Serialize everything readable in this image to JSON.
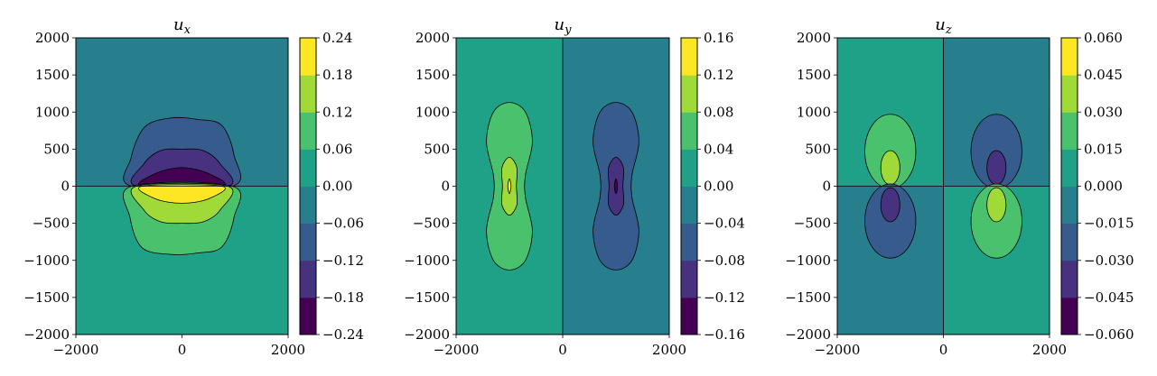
{
  "chart_data": [
    {
      "type": "contour",
      "title": "u_x",
      "title_base": "u",
      "title_sub": "x",
      "x_ticks": [
        -2000,
        0,
        2000
      ],
      "y_ticks": [
        2000,
        1500,
        1000,
        500,
        0,
        -500,
        -1000,
        -1500,
        -2000
      ],
      "xlim": [
        -2000,
        2000
      ],
      "ylim": [
        -2000,
        2000
      ],
      "colorbar": {
        "levels": [
          -0.24,
          -0.18,
          -0.12,
          -0.06,
          0.0,
          0.06,
          0.12,
          0.18,
          0.24
        ],
        "tick_labels": [
          "0.24",
          "0.18",
          "0.12",
          "0.06",
          "0.00",
          "−0.06",
          "−0.12",
          "−0.18",
          "−0.24"
        ]
      },
      "colors": [
        "#440154",
        "#46327e",
        "#365c8d",
        "#277f8e",
        "#1fa187",
        "#4ac16d",
        "#a0da39",
        "#fde725"
      ],
      "features": [
        {
          "name": "lower-half-fill",
          "band": 4,
          "x": [
            -2000,
            2000
          ],
          "y": [
            -2000,
            0
          ]
        },
        {
          "name": "upper-half-fill",
          "band": 3,
          "x": [
            -2000,
            2000
          ],
          "y": [
            0,
            2000
          ]
        },
        {
          "name": "upper-lobe-outer",
          "band": 2,
          "path": [
            [
              -950,
              0
            ],
            [
              -960,
              380
            ],
            [
              -700,
              800
            ],
            [
              -200,
              920
            ],
            [
              300,
              900
            ],
            [
              750,
              820
            ],
            [
              980,
              420
            ],
            [
              950,
              0
            ]
          ]
        },
        {
          "name": "upper-lobe-middle",
          "band": 1,
          "path": [
            [
              -860,
              0
            ],
            [
              -720,
              300
            ],
            [
              -400,
              480
            ],
            [
              0,
              500
            ],
            [
              400,
              480
            ],
            [
              720,
              300
            ],
            [
              860,
              0
            ]
          ]
        },
        {
          "name": "upper-lobe-inner",
          "band": 0,
          "path": [
            [
              -750,
              0
            ],
            [
              -500,
              170
            ],
            [
              0,
              250
            ],
            [
              500,
              170
            ],
            [
              750,
              0
            ]
          ]
        },
        {
          "name": "lower-lobe-outer",
          "band": 5,
          "path": [
            [
              -950,
              0
            ],
            [
              -980,
              -420
            ],
            [
              -750,
              -830
            ],
            [
              -200,
              -920
            ],
            [
              300,
              -900
            ],
            [
              750,
              -820
            ],
            [
              980,
              -420
            ],
            [
              950,
              0
            ]
          ]
        },
        {
          "name": "lower-lobe-middle",
          "band": 6,
          "path": [
            [
              -860,
              0
            ],
            [
              -720,
              -320
            ],
            [
              -400,
              -480
            ],
            [
              0,
              -500
            ],
            [
              400,
              -480
            ],
            [
              720,
              -320
            ],
            [
              860,
              0
            ]
          ]
        },
        {
          "name": "lower-lobe-inner",
          "band": 7,
          "path": [
            [
              -750,
              0
            ],
            [
              -500,
              -170
            ],
            [
              0,
              -230
            ],
            [
              500,
              -170
            ],
            [
              750,
              0
            ]
          ]
        },
        {
          "name": "zero-contour",
          "line": [
            [
              -2000,
              0
            ],
            [
              2000,
              0
            ]
          ]
        }
      ]
    },
    {
      "type": "contour",
      "title": "u_y",
      "title_base": "u",
      "title_sub": "y",
      "x_ticks": [
        -2000,
        0,
        2000
      ],
      "y_ticks": [
        2000,
        1500,
        1000,
        500,
        0,
        -500,
        -1000,
        -1500,
        -2000
      ],
      "xlim": [
        -2000,
        2000
      ],
      "ylim": [
        -2000,
        2000
      ],
      "colorbar": {
        "levels": [
          -0.16,
          -0.12,
          -0.08,
          -0.04,
          0.0,
          0.04,
          0.08,
          0.12,
          0.16
        ],
        "tick_labels": [
          "0.16",
          "0.12",
          "0.08",
          "0.04",
          "0.00",
          "−0.04",
          "−0.08",
          "−0.12",
          "−0.16"
        ]
      },
      "colors": [
        "#440154",
        "#46327e",
        "#365c8d",
        "#277f8e",
        "#1fa187",
        "#4ac16d",
        "#a0da39",
        "#fde725"
      ],
      "features": [
        {
          "name": "left-half-fill",
          "band": 4,
          "x": [
            -2000,
            0
          ],
          "y": [
            -2000,
            2000
          ]
        },
        {
          "name": "right-half-fill",
          "band": 3,
          "x": [
            0,
            2000
          ],
          "y": [
            -2000,
            2000
          ]
        },
        {
          "name": "left-outer-lobe",
          "band": 5,
          "path": [
            [
              -1000,
              1130
            ],
            [
              -700,
              1000
            ],
            [
              -570,
              600
            ],
            [
              -700,
              150
            ],
            [
              -700,
              -150
            ],
            [
              -570,
              -600
            ],
            [
              -700,
              -1000
            ],
            [
              -1000,
              -1130
            ],
            [
              -1300,
              -1000
            ],
            [
              -1430,
              -600
            ],
            [
              -1300,
              -150
            ],
            [
              -1300,
              150
            ],
            [
              -1430,
              600
            ],
            [
              -1300,
              1000
            ]
          ]
        },
        {
          "name": "left-middle-lobe",
          "band": 6,
          "path": [
            [
              -1000,
              390
            ],
            [
              -860,
              250
            ],
            [
              -870,
              0
            ],
            [
              -860,
              -250
            ],
            [
              -1000,
              -390
            ],
            [
              -1140,
              -250
            ],
            [
              -1130,
              0
            ],
            [
              -1140,
              250
            ]
          ]
        },
        {
          "name": "left-inner-lobe",
          "band": 7,
          "path": [
            [
              -1000,
              100
            ],
            [
              -970,
              0
            ],
            [
              -1000,
              -100
            ],
            [
              -1030,
              0
            ]
          ]
        },
        {
          "name": "right-outer-lobe",
          "band": 2,
          "path": [
            [
              1000,
              1130
            ],
            [
              1300,
              1000
            ],
            [
              1430,
              600
            ],
            [
              1300,
              150
            ],
            [
              1300,
              -150
            ],
            [
              1430,
              -600
            ],
            [
              1300,
              -1000
            ],
            [
              1000,
              -1130
            ],
            [
              700,
              -1000
            ],
            [
              570,
              -600
            ],
            [
              700,
              -150
            ],
            [
              700,
              150
            ],
            [
              570,
              600
            ],
            [
              700,
              1000
            ]
          ]
        },
        {
          "name": "right-middle-lobe",
          "band": 1,
          "path": [
            [
              1000,
              390
            ],
            [
              1140,
              250
            ],
            [
              1130,
              0
            ],
            [
              1140,
              -250
            ],
            [
              1000,
              -390
            ],
            [
              860,
              -250
            ],
            [
              870,
              0
            ],
            [
              860,
              250
            ]
          ]
        },
        {
          "name": "right-inner-lobe",
          "band": 0,
          "path": [
            [
              1000,
              100
            ],
            [
              1030,
              0
            ],
            [
              1000,
              -100
            ],
            [
              970,
              0
            ]
          ]
        },
        {
          "name": "zero-contour",
          "line": [
            [
              0,
              -2000
            ],
            [
              0,
              2000
            ]
          ]
        }
      ]
    },
    {
      "type": "contour",
      "title": "u_z",
      "title_base": "u",
      "title_sub": "z",
      "x_ticks": [
        -2000,
        0,
        2000
      ],
      "y_ticks": [
        2000,
        1500,
        1000,
        500,
        0,
        -500,
        -1000,
        -1500,
        -2000
      ],
      "xlim": [
        -2000,
        2000
      ],
      "ylim": [
        -2000,
        2000
      ],
      "colorbar": {
        "levels": [
          -0.06,
          -0.045,
          -0.03,
          -0.015,
          0.0,
          0.015,
          0.03,
          0.045,
          0.06
        ],
        "tick_labels": [
          "0.060",
          "0.045",
          "0.030",
          "0.015",
          "0.000",
          "−0.015",
          "−0.030",
          "−0.045",
          "−0.060"
        ]
      },
      "colors": [
        "#440154",
        "#46327e",
        "#365c8d",
        "#277f8e",
        "#1fa187",
        "#4ac16d",
        "#a0da39",
        "#fde725"
      ],
      "features": [
        {
          "name": "upper-left-fill",
          "band": 4,
          "x": [
            -2000,
            0
          ],
          "y": [
            0,
            2000
          ]
        },
        {
          "name": "upper-right-fill",
          "band": 3,
          "x": [
            0,
            2000
          ],
          "y": [
            0,
            2000
          ]
        },
        {
          "name": "lower-left-fill",
          "band": 3,
          "x": [
            -2000,
            0
          ],
          "y": [
            -2000,
            0
          ]
        },
        {
          "name": "lower-right-fill",
          "band": 4,
          "x": [
            0,
            2000
          ],
          "y": [
            -2000,
            0
          ]
        },
        {
          "name": "left-upper-outer",
          "band": 5,
          "ellipse": [
            -1000,
            470,
            480,
            500
          ]
        },
        {
          "name": "left-upper-inner",
          "band": 6,
          "ellipse": [
            -1000,
            250,
            180,
            230
          ]
        },
        {
          "name": "left-lower-outer",
          "band": 2,
          "ellipse": [
            -1000,
            -470,
            480,
            500
          ]
        },
        {
          "name": "left-lower-inner",
          "band": 1,
          "ellipse": [
            -1000,
            -250,
            180,
            230
          ]
        },
        {
          "name": "right-upper-outer",
          "band": 2,
          "ellipse": [
            1000,
            470,
            480,
            500
          ]
        },
        {
          "name": "right-upper-inner",
          "band": 1,
          "ellipse": [
            1000,
            250,
            180,
            230
          ]
        },
        {
          "name": "right-lower-outer",
          "band": 5,
          "ellipse": [
            1000,
            -470,
            480,
            500
          ]
        },
        {
          "name": "right-lower-inner",
          "band": 6,
          "ellipse": [
            1000,
            -250,
            180,
            230
          ]
        },
        {
          "name": "zero-contour-horizontal",
          "line": [
            [
              -2000,
              0
            ],
            [
              2000,
              0
            ]
          ]
        },
        {
          "name": "zero-contour-vertical",
          "line": [
            [
              0,
              -2000
            ],
            [
              0,
              2000
            ]
          ]
        }
      ]
    }
  ]
}
